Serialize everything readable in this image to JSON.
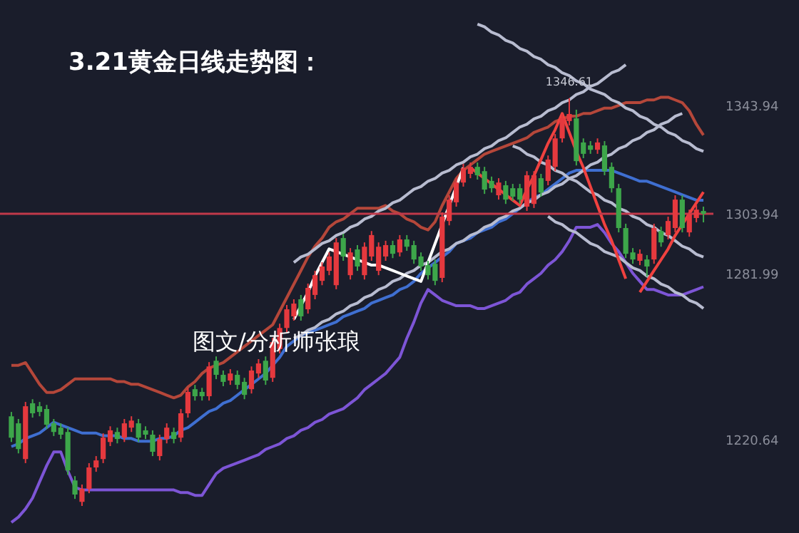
{
  "chart_data": {
    "type": "candlestick",
    "title": "3.21黄金日线走势图：",
    "categories": [
      null,
      null,
      null,
      null,
      null,
      null,
      null,
      null,
      null,
      null,
      null,
      null,
      null,
      null,
      null,
      null,
      null,
      null,
      null,
      null,
      null,
      null,
      null,
      null,
      null,
      null,
      null,
      null,
      null,
      null,
      null,
      null,
      null,
      null,
      null,
      null,
      null,
      null,
      null,
      null,
      null,
      null,
      null,
      null,
      null,
      null,
      null,
      null,
      null,
      null,
      null,
      null,
      null,
      null,
      null,
      null,
      null,
      null,
      null,
      null,
      null,
      null,
      null,
      null,
      null,
      null,
      null,
      null,
      null,
      null,
      null,
      null,
      null,
      null,
      null,
      null,
      null,
      null,
      null,
      null,
      null,
      null,
      null,
      null,
      null,
      null,
      null,
      null,
      null,
      null,
      null,
      null,
      null,
      null,
      null,
      null,
      null,
      null,
      null
    ],
    "ohlc": [
      [
        1229.2,
        1230.8,
        1219.7,
        1221.3
      ],
      [
        1226.6,
        1228.2,
        1215.5,
        1217.1
      ],
      [
        1213.4,
        1234.5,
        1211.9,
        1232.9
      ],
      [
        1234.0,
        1235.5,
        1228.7,
        1230.3
      ],
      [
        1232.9,
        1234.5,
        1229.2,
        1230.8
      ],
      [
        1231.9,
        1233.4,
        1224.5,
        1226.1
      ],
      [
        1226.6,
        1228.2,
        1221.9,
        1223.4
      ],
      [
        1225.0,
        1226.6,
        1220.8,
        1222.4
      ],
      [
        1223.4,
        1225.0,
        1207.6,
        1209.2
      ],
      [
        1205.5,
        1207.1,
        1198.7,
        1200.3
      ],
      [
        1197.6,
        1204.0,
        1196.1,
        1202.4
      ],
      [
        1202.4,
        1211.9,
        1200.8,
        1210.3
      ],
      [
        1210.3,
        1214.5,
        1208.7,
        1212.9
      ],
      [
        1213.4,
        1222.9,
        1211.9,
        1221.3
      ],
      [
        1219.7,
        1225.5,
        1218.2,
        1224.0
      ],
      [
        1223.4,
        1225.0,
        1219.2,
        1220.8
      ],
      [
        1221.3,
        1228.2,
        1219.7,
        1226.6
      ],
      [
        1225.0,
        1229.2,
        1223.4,
        1227.6
      ],
      [
        1226.6,
        1228.2,
        1219.7,
        1221.3
      ],
      [
        1224.0,
        1225.5,
        1220.8,
        1222.4
      ],
      [
        1222.4,
        1224.0,
        1214.5,
        1216.1
      ],
      [
        1214.5,
        1222.4,
        1212.9,
        1220.8
      ],
      [
        1220.8,
        1226.6,
        1219.2,
        1225.0
      ],
      [
        1223.4,
        1225.0,
        1219.2,
        1220.8
      ],
      [
        1221.3,
        1231.9,
        1219.7,
        1230.3
      ],
      [
        1230.3,
        1239.7,
        1228.7,
        1238.2
      ],
      [
        1239.2,
        1240.8,
        1235.0,
        1236.6
      ],
      [
        1238.2,
        1239.7,
        1235.0,
        1236.6
      ],
      [
        1236.6,
        1249.2,
        1235.0,
        1247.6
      ],
      [
        1249.7,
        1251.3,
        1242.9,
        1244.5
      ],
      [
        1244.5,
        1246.1,
        1240.3,
        1241.9
      ],
      [
        1242.4,
        1246.6,
        1240.8,
        1245.0
      ],
      [
        1244.5,
        1246.1,
        1239.2,
        1240.8
      ],
      [
        1241.9,
        1243.4,
        1235.5,
        1237.1
      ],
      [
        1239.2,
        1247.6,
        1237.6,
        1246.1
      ],
      [
        1245.0,
        1250.3,
        1243.4,
        1248.7
      ],
      [
        1249.7,
        1251.3,
        1240.8,
        1242.4
      ],
      [
        1243.4,
        1258.2,
        1241.9,
        1256.6
      ],
      [
        1254.0,
        1263.4,
        1252.4,
        1261.8
      ],
      [
        1261.8,
        1270.3,
        1260.3,
        1268.7
      ],
      [
        1266.1,
        1272.4,
        1264.5,
        1270.8
      ],
      [
        1272.4,
        1274.0,
        1264.5,
        1266.1
      ],
      [
        1268.7,
        1278.2,
        1267.1,
        1276.6
      ],
      [
        1274.0,
        1282.9,
        1272.4,
        1281.3
      ],
      [
        1279.2,
        1286.1,
        1277.6,
        1284.5
      ],
      [
        1282.9,
        1289.7,
        1281.3,
        1288.2
      ],
      [
        1277.6,
        1295.0,
        1276.1,
        1293.4
      ],
      [
        1295.0,
        1296.6,
        1286.6,
        1288.2
      ],
      [
        1281.3,
        1291.3,
        1279.7,
        1289.7
      ],
      [
        1290.8,
        1292.4,
        1282.9,
        1284.5
      ],
      [
        1281.3,
        1293.4,
        1279.7,
        1291.8
      ],
      [
        1288.2,
        1297.6,
        1286.6,
        1296.1
      ],
      [
        1282.9,
        1293.4,
        1281.3,
        1291.8
      ],
      [
        1288.2,
        1294.0,
        1286.6,
        1292.4
      ],
      [
        1292.4,
        1294.0,
        1287.6,
        1289.2
      ],
      [
        1289.7,
        1296.1,
        1288.2,
        1294.5
      ],
      [
        1294.5,
        1296.1,
        1290.3,
        1291.8
      ],
      [
        1292.4,
        1294.0,
        1285.5,
        1287.1
      ],
      [
        1288.2,
        1289.7,
        1282.9,
        1284.5
      ],
      [
        1285.0,
        1286.6,
        1279.7,
        1281.3
      ],
      [
        1285.5,
        1287.1,
        1277.6,
        1279.2
      ],
      [
        1280.3,
        1304.5,
        1278.7,
        1302.9
      ],
      [
        1301.3,
        1310.8,
        1299.7,
        1309.2
      ],
      [
        1308.2,
        1317.1,
        1306.6,
        1315.5
      ],
      [
        1315.5,
        1322.4,
        1314.0,
        1320.8
      ],
      [
        1318.7,
        1322.9,
        1317.1,
        1321.3
      ],
      [
        1321.3,
        1322.9,
        1316.6,
        1318.2
      ],
      [
        1319.7,
        1321.3,
        1311.3,
        1312.9
      ],
      [
        1316.1,
        1317.7,
        1311.8,
        1313.4
      ],
      [
        1310.8,
        1317.1,
        1309.2,
        1315.5
      ],
      [
        1314.5,
        1316.1,
        1307.6,
        1309.2
      ],
      [
        1313.4,
        1315.0,
        1308.7,
        1310.3
      ],
      [
        1313.4,
        1315.0,
        1307.6,
        1309.2
      ],
      [
        1306.6,
        1319.7,
        1305.0,
        1318.2
      ],
      [
        1307.6,
        1319.7,
        1306.1,
        1318.2
      ],
      [
        1317.1,
        1318.7,
        1310.3,
        1311.8
      ],
      [
        1316.1,
        1325.5,
        1314.5,
        1324.0
      ],
      [
        1321.3,
        1333.4,
        1319.7,
        1331.8
      ],
      [
        1331.8,
        1340.8,
        1330.3,
        1339.2
      ],
      [
        1338.2,
        1346.61,
        1336.6,
        1340.8
      ],
      [
        1339.2,
        1342.4,
        1321.8,
        1323.4
      ],
      [
        1330.3,
        1331.8,
        1324.5,
        1326.1
      ],
      [
        1329.2,
        1330.8,
        1326.1,
        1327.6
      ],
      [
        1327.6,
        1331.8,
        1326.1,
        1330.3
      ],
      [
        1329.2,
        1330.8,
        1318.2,
        1319.7
      ],
      [
        1321.3,
        1322.9,
        1311.8,
        1313.4
      ],
      [
        1313.4,
        1315.0,
        1297.1,
        1298.7
      ],
      [
        1298.7,
        1300.3,
        1287.6,
        1289.2
      ],
      [
        1289.7,
        1291.3,
        1285.5,
        1287.1
      ],
      [
        1286.6,
        1290.8,
        1285.0,
        1289.2
      ],
      [
        1287.1,
        1288.7,
        1280.8,
        1284.5
      ],
      [
        1287.1,
        1300.3,
        1285.5,
        1298.7
      ],
      [
        1297.6,
        1299.2,
        1291.8,
        1293.4
      ],
      [
        1296.1,
        1302.9,
        1294.5,
        1301.3
      ],
      [
        1298.7,
        1310.8,
        1297.1,
        1309.2
      ],
      [
        1309.2,
        1310.8,
        1297.1,
        1298.7
      ],
      [
        1297.1,
        1305.5,
        1295.5,
        1303.9
      ],
      [
        1302.4,
        1307.1,
        1300.8,
        1305.5
      ],
      [
        1305.0,
        1306.6,
        1300.8,
        1303.94
      ]
    ],
    "colors": [
      "#3da64a",
      "#3da64a",
      "#e5393e",
      "#3da64a",
      "#3da64a",
      "#3da64a",
      "#3da64a",
      "#3da64a",
      "#3da64a",
      "#3da64a",
      "#e5393e",
      "#e5393e",
      "#e5393e",
      "#e5393e",
      "#e5393e",
      "#3da64a",
      "#e5393e",
      "#e5393e",
      "#3da64a",
      "#3da64a",
      "#3da64a",
      "#e5393e",
      "#e5393e",
      "#3da64a",
      "#e5393e",
      "#e5393e",
      "#3da64a",
      "#3da64a",
      "#e5393e",
      "#3da64a",
      "#3da64a",
      "#e5393e",
      "#3da64a",
      "#3da64a",
      "#e5393e",
      "#e5393e",
      "#3da64a",
      "#e5393e",
      "#e5393e",
      "#e5393e",
      "#e5393e",
      "#3da64a",
      "#e5393e",
      "#e5393e",
      "#e5393e",
      "#e5393e",
      "#e5393e",
      "#3da64a",
      "#e5393e",
      "#3da64a",
      "#e5393e",
      "#e5393e",
      "#e5393e",
      "#e5393e",
      "#3da64a",
      "#e5393e",
      "#3da64a",
      "#3da64a",
      "#3da64a",
      "#3da64a",
      "#3da64a",
      "#e5393e",
      "#e5393e",
      "#e5393e",
      "#e5393e",
      "#e5393e",
      "#3da64a",
      "#3da64a",
      "#3da64a",
      "#e5393e",
      "#3da64a",
      "#3da64a",
      "#3da64a",
      "#e5393e",
      "#e5393e",
      "#3da64a",
      "#e5393e",
      "#e5393e",
      "#e5393e",
      "#e5393e",
      "#3da64a",
      "#3da64a",
      "#3da64a",
      "#e5393e",
      "#3da64a",
      "#3da64a",
      "#3da64a",
      "#3da64a",
      "#3da64a",
      "#e5393e",
      "#3da64a",
      "#e5393e",
      "#3da64a",
      "#e5393e",
      "#e5393e",
      "#3da64a",
      "#e5393e",
      "#e5393e",
      "#3da64a"
    ],
    "series": [
      {
        "type": "line",
        "color": "#b5473a",
        "values": [
          1248,
          1248,
          1249,
          1245,
          1241,
          1238,
          1238,
          1239,
          1241,
          1243,
          1243,
          1243,
          1243,
          1243,
          1243,
          1242,
          1242,
          1241,
          1241,
          1240,
          1239,
          1238,
          1237,
          1236,
          1237,
          1240,
          1242,
          1245,
          1247,
          1248,
          1249,
          1251,
          1253,
          1255,
          1257,
          1259,
          1261,
          1263,
          1268,
          1273,
          1278,
          1283,
          1288,
          1292,
          1295,
          1299,
          1301,
          1302,
          1304,
          1306,
          1306,
          1306,
          1306,
          1307,
          1305,
          1304,
          1302,
          1301,
          1299,
          1298,
          1301,
          1307,
          1312,
          1317,
          1320,
          1322,
          1324,
          1326,
          1327,
          1328,
          1329,
          1330,
          1331,
          1332,
          1334,
          1335,
          1336,
          1338,
          1339,
          1340,
          1340,
          1341,
          1341,
          1342,
          1343,
          1343,
          1344,
          1345,
          1345,
          1345,
          1346,
          1346,
          1347,
          1347,
          1346,
          1345,
          1342,
          1337,
          1333
        ]
      },
      {
        "type": "line",
        "color": "#3f6fd1",
        "values": [
          1218,
          1219,
          1221,
          1222,
          1223,
          1225,
          1227,
          1226,
          1225,
          1224,
          1223,
          1223,
          1223,
          1222,
          1222,
          1222,
          1221,
          1221,
          1220,
          1220,
          1220,
          1221,
          1221,
          1222,
          1224,
          1225,
          1227,
          1229,
          1231,
          1232,
          1234,
          1235,
          1237,
          1239,
          1241,
          1243,
          1245,
          1248,
          1251,
          1255,
          1257,
          1259,
          1260,
          1261,
          1262,
          1263,
          1264,
          1266,
          1267,
          1268,
          1269,
          1271,
          1272,
          1273,
          1274,
          1276,
          1277,
          1279,
          1282,
          1284,
          1286,
          1288,
          1290,
          1293,
          1294,
          1295,
          1297,
          1298,
          1299,
          1301,
          1302,
          1304,
          1306,
          1308,
          1310,
          1311,
          1313,
          1315,
          1317,
          1319,
          1320,
          1320,
          1320,
          1320,
          1320,
          1320,
          1319,
          1318,
          1317,
          1316,
          1316,
          1315,
          1314,
          1313,
          1312,
          1311,
          1310,
          1309,
          1309
        ]
      },
      {
        "type": "line",
        "color": "#7d55d6",
        "values": [
          1190,
          1192,
          1195,
          1199,
          1205,
          1211,
          1216,
          1216,
          1209,
          1203,
          1202,
          1202,
          1202,
          1202,
          1202,
          1202,
          1202,
          1202,
          1202,
          1202,
          1202,
          1202,
          1202,
          1202,
          1201,
          1201,
          1200,
          1200,
          1204,
          1208,
          1210,
          1211,
          1212,
          1213,
          1214,
          1215,
          1217,
          1218,
          1219,
          1221,
          1222,
          1224,
          1225,
          1227,
          1228,
          1230,
          1231,
          1232,
          1234,
          1236,
          1239,
          1241,
          1243,
          1245,
          1248,
          1251,
          1258,
          1264,
          1271,
          1276,
          1274,
          1272,
          1271,
          1270,
          1270,
          1270,
          1269,
          1269,
          1270,
          1271,
          1272,
          1274,
          1275,
          1278,
          1280,
          1282,
          1285,
          1287,
          1290,
          1294,
          1299,
          1299,
          1299,
          1300,
          1297,
          1293,
          1290,
          1286,
          1282,
          1279,
          1276,
          1276,
          1275,
          1274,
          1274,
          1274,
          1275,
          1276,
          1277
        ]
      },
      {
        "type": "line",
        "color": "#b8bcd0",
        "values": [
          null,
          null,
          null,
          null,
          null,
          null,
          null,
          null,
          null,
          null,
          null,
          null,
          null,
          null,
          null,
          null,
          null,
          null,
          null,
          null,
          null,
          null,
          null,
          null,
          null,
          null,
          null,
          null,
          null,
          null,
          null,
          null,
          null,
          null,
          null,
          null,
          null,
          null,
          null,
          null,
          1286,
          1288,
          1289,
          1291,
          1293,
          1294,
          1296,
          1297,
          1299,
          1300,
          1302,
          1303,
          1305,
          1306,
          1308,
          1309,
          1311,
          1313,
          1314,
          1316,
          1317,
          1319,
          1320,
          1322,
          1323,
          1325,
          1326,
          1328,
          1329,
          1331,
          1332,
          1334,
          1336,
          1337,
          1339,
          1340,
          1342,
          1343,
          1345,
          1346,
          1348,
          1349,
          1351,
          1352,
          1354,
          1356,
          1357,
          1359,
          null,
          null,
          null,
          null,
          null,
          null,
          null,
          null,
          null,
          null,
          null
        ]
      },
      {
        "type": "line",
        "color": "#b8bcd0",
        "values": [
          null,
          null,
          null,
          null,
          null,
          null,
          null,
          null,
          null,
          null,
          null,
          null,
          null,
          null,
          null,
          null,
          null,
          null,
          null,
          null,
          null,
          null,
          null,
          null,
          null,
          null,
          null,
          null,
          null,
          null,
          null,
          null,
          null,
          null,
          null,
          null,
          null,
          null,
          null,
          null,
          1258,
          1259,
          1261,
          1262,
          1264,
          1265,
          1267,
          1268,
          1270,
          1271,
          1273,
          1274,
          1276,
          1277,
          1279,
          1280,
          1282,
          1283,
          1285,
          1286,
          1288,
          1290,
          1291,
          1293,
          1294,
          1296,
          1297,
          1299,
          1300,
          1302,
          1303,
          1305,
          1306,
          1308,
          1309,
          1311,
          1312,
          1314,
          1315,
          1317,
          1318,
          1320,
          1322,
          1323,
          1325,
          1326,
          1328,
          1329,
          1331,
          1332,
          1334,
          1335,
          1337,
          1338,
          1340,
          1341,
          null,
          null,
          null
        ]
      },
      {
        "type": "line",
        "color": "#b8bcd0",
        "values": [
          null,
          null,
          null,
          null,
          null,
          null,
          null,
          null,
          null,
          null,
          null,
          null,
          null,
          null,
          null,
          null,
          null,
          null,
          null,
          null,
          null,
          null,
          null,
          null,
          null,
          null,
          null,
          null,
          null,
          null,
          null,
          null,
          null,
          null,
          null,
          null,
          null,
          null,
          null,
          null,
          null,
          null,
          null,
          null,
          null,
          null,
          null,
          null,
          null,
          null,
          null,
          null,
          null,
          null,
          null,
          null,
          null,
          null,
          null,
          null,
          null,
          null,
          null,
          null,
          null,
          null,
          1374,
          1373,
          1371,
          1370,
          1368,
          1367,
          1365,
          1364,
          1362,
          1361,
          1359,
          1358,
          1356,
          1355,
          1353,
          1352,
          1350,
          1349,
          1348,
          1346,
          1345,
          1343,
          1342,
          1340,
          1339,
          1337,
          1336,
          1334,
          1333,
          1331,
          1330,
          1328,
          1327
        ]
      },
      {
        "type": "line",
        "color": "#b8bcd0",
        "values": [
          null,
          null,
          null,
          null,
          null,
          null,
          null,
          null,
          null,
          null,
          null,
          null,
          null,
          null,
          null,
          null,
          null,
          null,
          null,
          null,
          null,
          null,
          null,
          null,
          null,
          null,
          null,
          null,
          null,
          null,
          null,
          null,
          null,
          null,
          null,
          null,
          null,
          null,
          null,
          null,
          null,
          null,
          null,
          null,
          null,
          null,
          null,
          null,
          null,
          null,
          null,
          null,
          null,
          null,
          null,
          null,
          null,
          null,
          null,
          null,
          null,
          null,
          null,
          null,
          null,
          null,
          null,
          null,
          null,
          null,
          null,
          1329,
          1328,
          1326,
          1325,
          1323,
          1322,
          1320,
          1319,
          1317,
          1316,
          1314,
          1312,
          1311,
          1309,
          1308,
          1306,
          1305,
          1303,
          1302,
          1300,
          1299,
          1297,
          1296,
          1294,
          1292,
          1291,
          1289,
          1288
        ]
      },
      {
        "type": "line",
        "color": "#b8bcd0",
        "values": [
          null,
          null,
          null,
          null,
          null,
          null,
          null,
          null,
          null,
          null,
          null,
          null,
          null,
          null,
          null,
          null,
          null,
          null,
          null,
          null,
          null,
          null,
          null,
          null,
          null,
          null,
          null,
          null,
          null,
          null,
          null,
          null,
          null,
          null,
          null,
          null,
          null,
          null,
          null,
          null,
          null,
          null,
          null,
          null,
          null,
          null,
          null,
          null,
          null,
          null,
          null,
          null,
          null,
          null,
          null,
          null,
          null,
          null,
          null,
          null,
          null,
          null,
          null,
          null,
          null,
          null,
          null,
          null,
          null,
          null,
          null,
          null,
          null,
          null,
          null,
          null,
          1303,
          1301,
          1300,
          1298,
          1297,
          1295,
          1293,
          1292,
          1290,
          1289,
          1288,
          1286,
          1284,
          1283,
          1281,
          1280,
          1278,
          1277,
          1275,
          1274,
          1272,
          1271,
          1269
        ]
      },
      {
        "type": "line",
        "color": "#ffffff",
        "values": [
          null,
          null,
          null,
          null,
          null,
          null,
          null,
          null,
          null,
          null,
          null,
          null,
          null,
          null,
          null,
          null,
          null,
          null,
          null,
          null,
          null,
          null,
          null,
          null,
          null,
          null,
          null,
          null,
          null,
          null,
          null,
          null,
          null,
          null,
          null,
          null,
          null,
          null,
          null,
          null,
          1265,
          1270,
          1275,
          1281,
          1286,
          1291,
          1290,
          1289,
          1288,
          1287,
          1286,
          1285,
          1285,
          1284,
          1283,
          1282,
          1281,
          1280,
          1279,
          1286,
          1293,
          1300,
          1307,
          1314,
          1321,
          null,
          null,
          null,
          null,
          null,
          null,
          null,
          null,
          null,
          null,
          null,
          null,
          null,
          null,
          null,
          null,
          null,
          null,
          null,
          null,
          null,
          null,
          null,
          null,
          null,
          null,
          null,
          null,
          null,
          null,
          null,
          null,
          null,
          null
        ]
      },
      {
        "type": "line",
        "color": "#f0413f",
        "values": [
          null,
          null,
          null,
          null,
          null,
          null,
          null,
          null,
          null,
          null,
          null,
          null,
          null,
          null,
          null,
          null,
          null,
          null,
          null,
          null,
          null,
          null,
          null,
          null,
          null,
          null,
          null,
          null,
          null,
          null,
          null,
          null,
          null,
          null,
          null,
          null,
          null,
          null,
          null,
          null,
          null,
          null,
          null,
          null,
          null,
          null,
          null,
          null,
          null,
          null,
          null,
          null,
          null,
          null,
          null,
          null,
          null,
          null,
          null,
          null,
          null,
          null,
          null,
          null,
          null,
          1321,
          1319,
          1317,
          1315,
          1313,
          1311,
          1309,
          1307,
          1313,
          1318,
          1324,
          1330,
          1335,
          1341,
          1334,
          1327,
          1321,
          1314,
          1307,
          1300,
          1294,
          1287,
          1280,
          null,
          null,
          null,
          null,
          null,
          null,
          null,
          null,
          null,
          null,
          null
        ]
      },
      {
        "type": "line",
        "color": "#f0413f",
        "values": [
          null,
          null,
          null,
          null,
          null,
          null,
          null,
          null,
          null,
          null,
          null,
          null,
          null,
          null,
          null,
          null,
          null,
          null,
          null,
          null,
          null,
          null,
          null,
          null,
          null,
          null,
          null,
          null,
          null,
          null,
          null,
          null,
          null,
          null,
          null,
          null,
          null,
          null,
          null,
          null,
          null,
          null,
          null,
          null,
          null,
          null,
          null,
          null,
          null,
          null,
          null,
          null,
          null,
          null,
          null,
          null,
          null,
          null,
          null,
          null,
          null,
          null,
          null,
          null,
          null,
          null,
          null,
          null,
          null,
          null,
          null,
          null,
          null,
          null,
          null,
          null,
          null,
          null,
          null,
          null,
          null,
          null,
          null,
          null,
          null,
          null,
          null,
          null,
          null,
          1275,
          1279,
          1283,
          1287,
          1291,
          1296,
          1300,
          1304,
          1308,
          1312
        ]
      }
    ],
    "ref_lines": [
      {
        "axis": "y",
        "value": 1303.94,
        "color": "#c0394a"
      }
    ],
    "annotations": [
      {
        "text": "1346.61",
        "y": 1346.61
      },
      "图文/分析师张琅"
    ],
    "ylim": [
      1186.1,
      1382.9
    ],
    "yticks": [
      1220.64,
      1281.99,
      1303.94,
      1343.94
    ],
    "tick_labels": "y",
    "grid": false,
    "line_style": "solid",
    "marker": "none"
  }
}
